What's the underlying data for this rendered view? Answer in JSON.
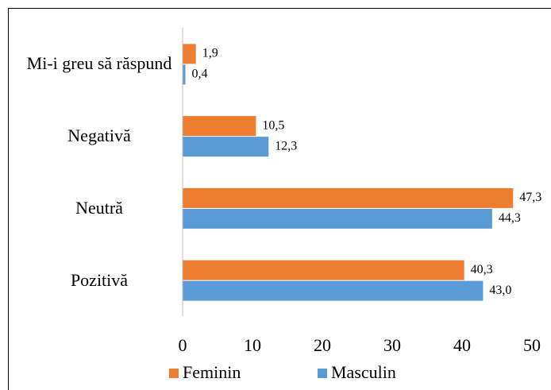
{
  "chart_data": {
    "type": "bar",
    "orientation": "horizontal",
    "categories": [
      "Mi-i greu să răspund",
      "Negativă",
      "Neutră",
      "Pozitivă"
    ],
    "series": [
      {
        "name": "Feminin",
        "color": "#ed7d31",
        "values": [
          1.9,
          10.5,
          47.3,
          40.3
        ],
        "value_labels": [
          "1,9",
          "10,5",
          "47,3",
          "40,3"
        ]
      },
      {
        "name": "Masculin",
        "color": "#5b9bd5",
        "values": [
          0.4,
          12.3,
          44.3,
          43.0
        ],
        "value_labels": [
          "0,4",
          "12,3",
          "44,3",
          "43,0"
        ]
      }
    ],
    "xlim": [
      0,
      50
    ],
    "xticks": [
      0,
      10,
      20,
      30,
      40,
      50
    ],
    "legend": "bottom"
  }
}
